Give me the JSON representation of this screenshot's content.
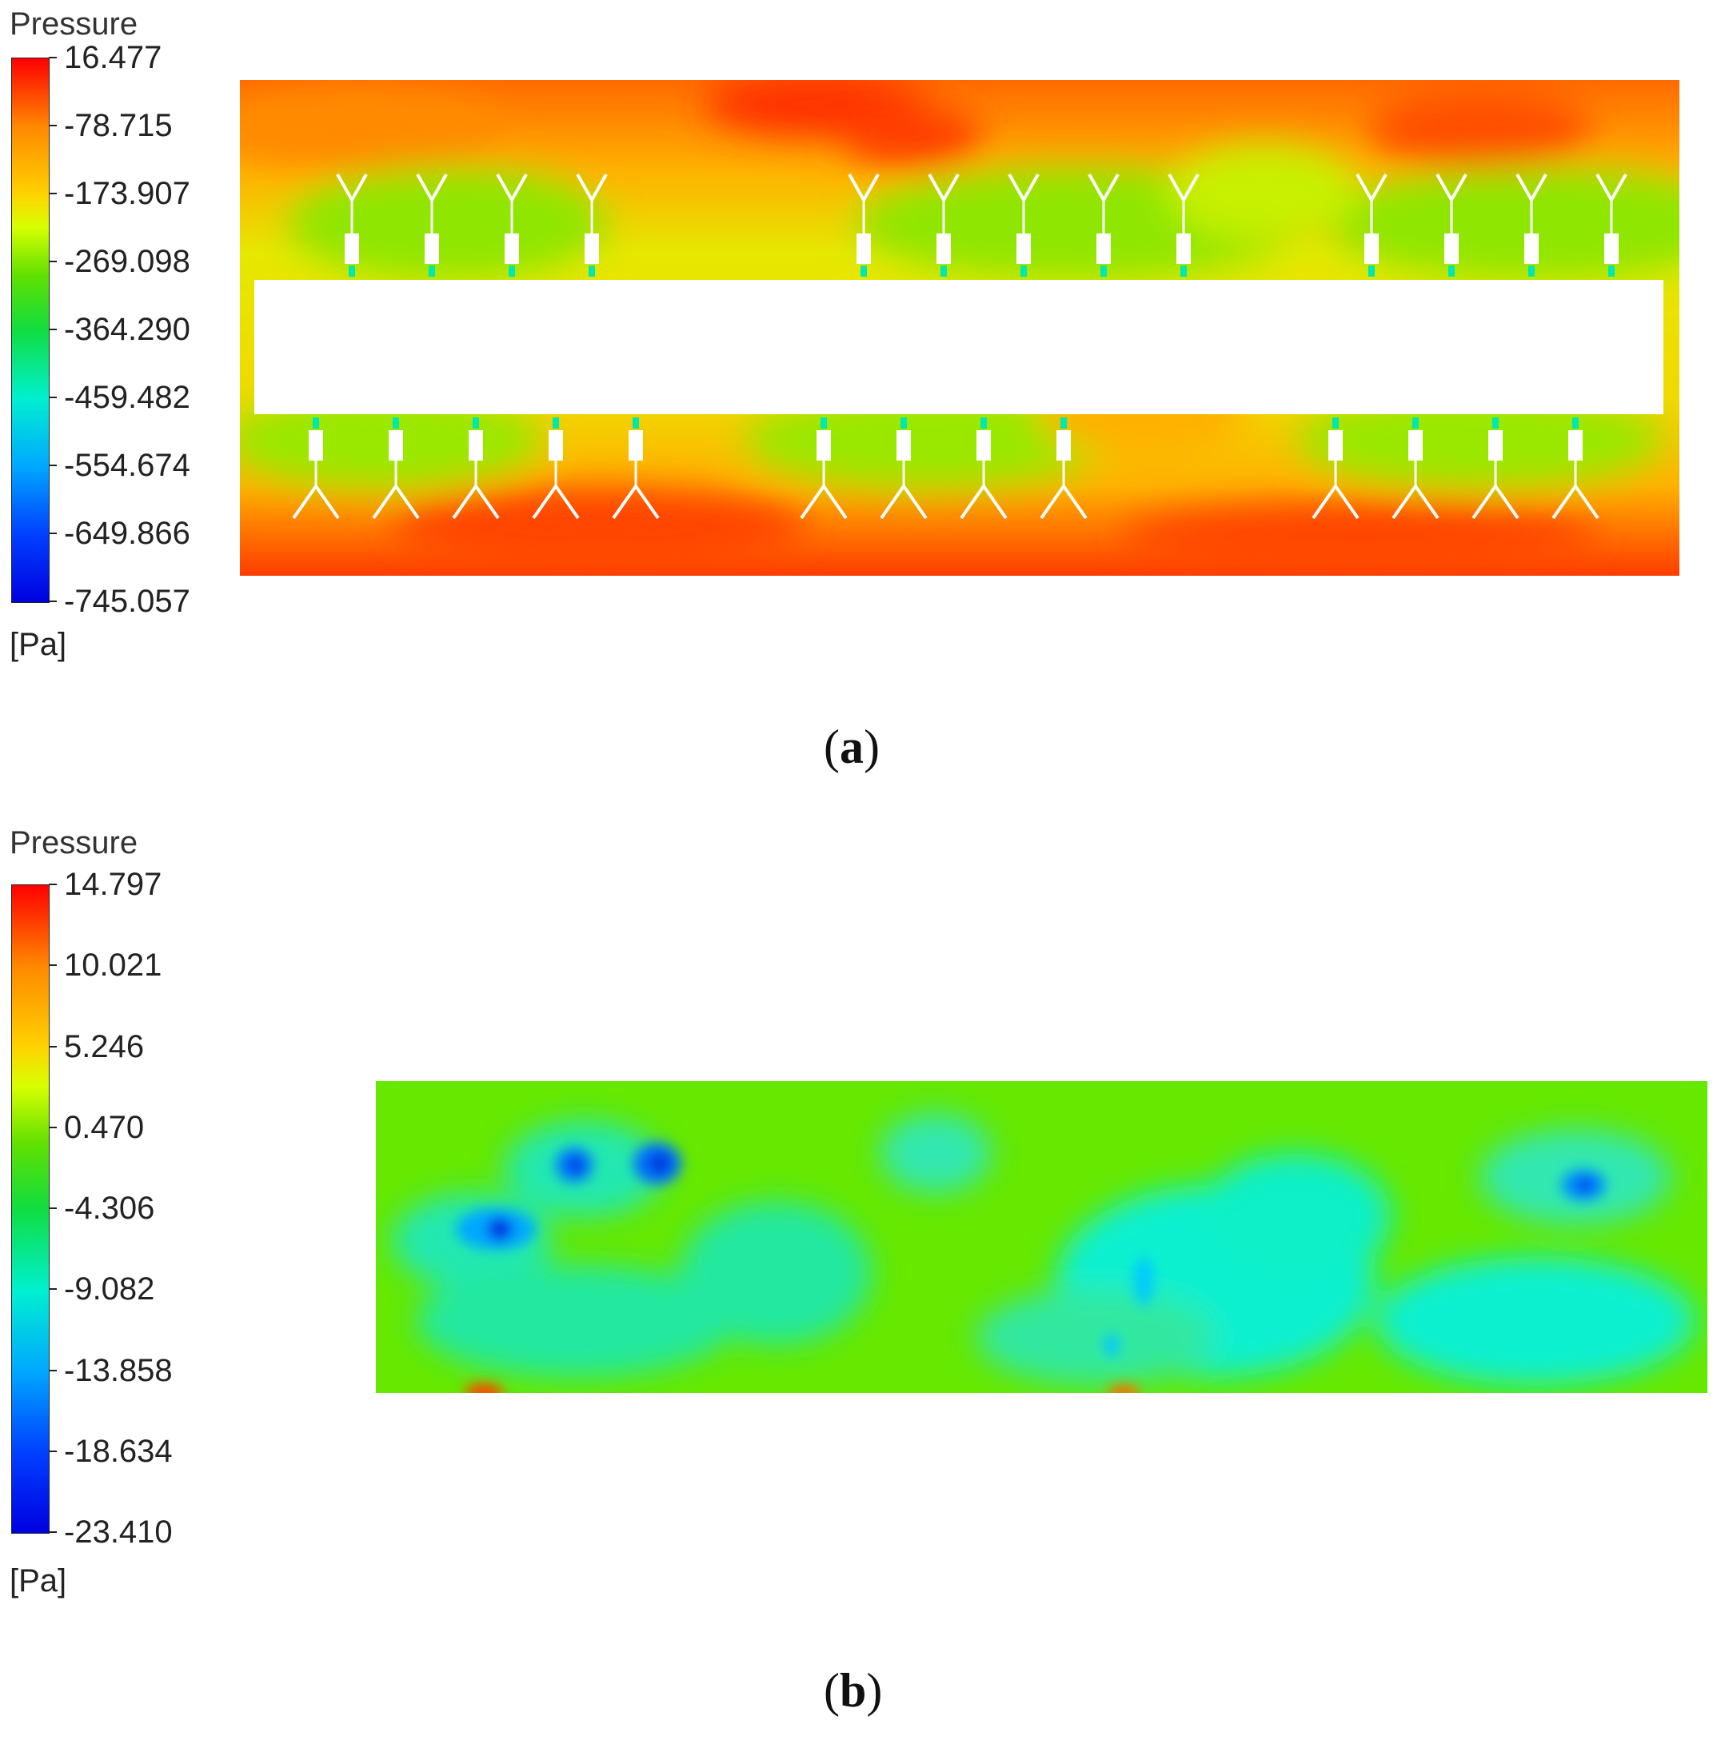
{
  "chart_data": [
    {
      "type": "heatmap",
      "panel_label": "a",
      "colorbar": {
        "title": "Pressure",
        "unit": "[Pa]",
        "ticks": [
          "16.477",
          "-78.715",
          "-173.907",
          "-269.098",
          "-364.290",
          "-459.482",
          "-554.674",
          "-649.866",
          "-745.057"
        ],
        "range": [
          -745.057,
          16.477
        ]
      },
      "colors": {
        "high": "#ff2a00",
        "mid": "#7cf000",
        "low": "#0010ff"
      }
    },
    {
      "type": "heatmap",
      "panel_label": "b",
      "colorbar": {
        "title": "Pressure",
        "unit": "[Pa]",
        "ticks": [
          "14.797",
          "10.021",
          "5.246",
          "0.470",
          "-4.306",
          "-9.082",
          "-13.858",
          "-18.634",
          "-23.410"
        ],
        "range": [
          -23.41,
          14.797
        ]
      },
      "colors": {
        "high": "#ff2a00",
        "mid": "#7cf000",
        "low": "#0010ff"
      }
    }
  ]
}
